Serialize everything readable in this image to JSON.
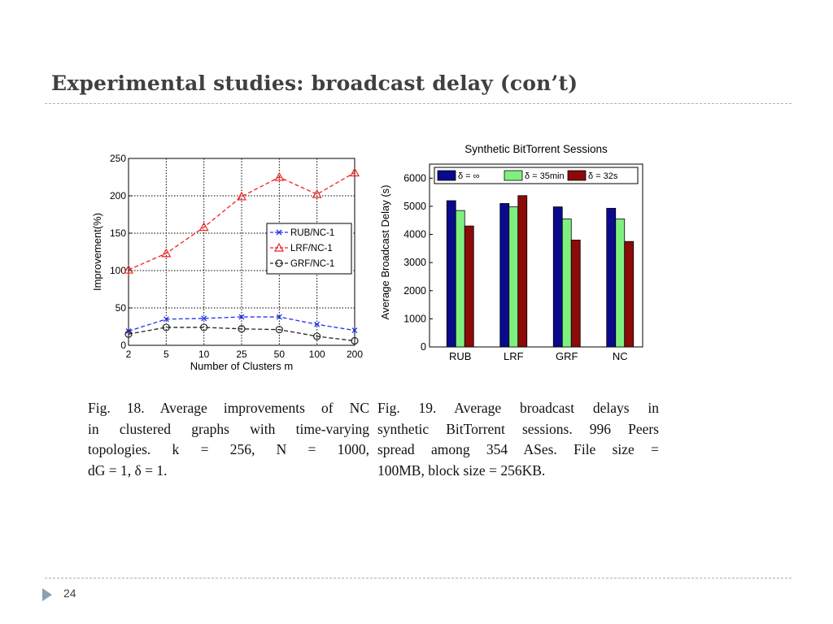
{
  "slide": {
    "title": "Experimental studies: broadcast delay (con’t)",
    "page_number": "24"
  },
  "chart_data": [
    {
      "type": "line",
      "xlabel": "Number of Clusters m",
      "ylabel": "Improvement(%)",
      "categories": [
        "2",
        "5",
        "10",
        "25",
        "50",
        "100",
        "200"
      ],
      "ylim": [
        0,
        250
      ],
      "yticks": [
        0,
        50,
        100,
        150,
        200,
        250
      ],
      "grid": true,
      "legend_position": "right",
      "series": [
        {
          "name": "RUB/NC-1",
          "values": [
            19,
            35,
            36,
            38,
            38,
            28,
            20
          ],
          "color": "#2233ee",
          "marker": "x"
        },
        {
          "name": "LRF/NC-1",
          "values": [
            101,
            123,
            158,
            199,
            225,
            202,
            231
          ],
          "color": "#ee2222",
          "marker": "triangle"
        },
        {
          "name": "GRF/NC-1",
          "values": [
            15,
            24,
            24,
            22,
            21,
            12,
            6
          ],
          "color": "#222222",
          "marker": "circle"
        }
      ]
    },
    {
      "type": "bar",
      "title": "Synthetic BitTorrent Sessions",
      "xlabel": "",
      "ylabel": "Average Broadcast Delay (s)",
      "categories": [
        "RUB",
        "LRF",
        "GRF",
        "NC"
      ],
      "ylim": [
        0,
        6500
      ],
      "yticks": [
        0,
        1000,
        2000,
        3000,
        4000,
        5000,
        6000
      ],
      "grid": false,
      "legend_position": "top",
      "series": [
        {
          "name": "δ = ∞",
          "values": [
            5200,
            5100,
            4980,
            4930
          ],
          "color": "#0a0a8c"
        },
        {
          "name": "δ = 35min",
          "values": [
            4850,
            4980,
            4550,
            4550
          ],
          "color": "#7ff07f"
        },
        {
          "name": "δ = 32s",
          "values": [
            4300,
            5380,
            3800,
            3750
          ],
          "color": "#8c0a0a"
        }
      ]
    }
  ],
  "captions": {
    "fig18": [
      "Fig. 18.   Average improvements of NC",
      "in clustered graphs with time-varying",
      "topologies.  k  =  256,  N  =  1000,",
      "dG = 1, δ = 1."
    ],
    "fig19": [
      "Fig. 19.    Average broadcast delays in",
      "synthetic BitTorrent sessions. 996 Peers",
      "spread among 354 ASes. File size =",
      "100MB, block size = 256KB."
    ]
  }
}
